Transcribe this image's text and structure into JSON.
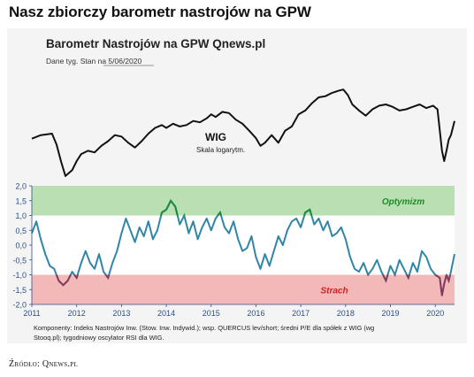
{
  "page": {
    "title": "Nasz zbiorczy barometr nastrojów na GPW",
    "source": "Źródło: Qnews.pl"
  },
  "chart_data": [
    {
      "type": "line",
      "title": "Barometr Nastrojów na GPW Qnews.pl",
      "subtitle": "Dane tyg. Stan na 5/06/2020",
      "series_label": "WIG",
      "series_sublabel": "Skala logarytm.",
      "series": [
        {
          "name": "WIG",
          "x": [
            2011.0,
            2011.2,
            2011.45,
            2011.55,
            2011.65,
            2011.75,
            2011.9,
            2012.0,
            2012.1,
            2012.25,
            2012.4,
            2012.55,
            2012.7,
            2012.85,
            2013.0,
            2013.15,
            2013.3,
            2013.45,
            2013.6,
            2013.75,
            2013.9,
            2014.0,
            2014.15,
            2014.3,
            2014.45,
            2014.6,
            2014.75,
            2014.9,
            2015.0,
            2015.1,
            2015.25,
            2015.4,
            2015.55,
            2015.7,
            2015.85,
            2016.0,
            2016.1,
            2016.2,
            2016.35,
            2016.5,
            2016.65,
            2016.8,
            2016.95,
            2017.1,
            2017.25,
            2017.4,
            2017.55,
            2017.7,
            2017.85,
            2017.95,
            2018.05,
            2018.15,
            2018.3,
            2018.45,
            2018.6,
            2018.75,
            2018.9,
            2019.05,
            2019.2,
            2019.35,
            2019.5,
            2019.65,
            2019.8,
            2019.95,
            2020.05,
            2020.15,
            2020.2,
            2020.25,
            2020.3,
            2020.35,
            2020.43
          ],
          "values": [
            47800,
            49000,
            49500,
            46000,
            41000,
            37000,
            38500,
            41000,
            43000,
            44000,
            43500,
            45500,
            47000,
            49000,
            48500,
            46500,
            45000,
            47000,
            49500,
            51500,
            52500,
            51500,
            53000,
            52000,
            52500,
            54000,
            53500,
            55000,
            56500,
            55500,
            57500,
            57000,
            54500,
            53000,
            50500,
            48000,
            45500,
            46500,
            49000,
            46500,
            50500,
            52000,
            56500,
            58000,
            61000,
            63500,
            64000,
            65500,
            66500,
            67000,
            64500,
            60500,
            58000,
            56000,
            58500,
            60000,
            60500,
            59500,
            58000,
            58500,
            59500,
            60500,
            59000,
            60000,
            58500,
            44000,
            41000,
            44000,
            47500,
            49000,
            54000
          ]
        }
      ],
      "yscale": "log",
      "ylim": [
        35000,
        70000
      ]
    },
    {
      "type": "line",
      "series": [
        {
          "name": "Indeks Nastrojów",
          "x": [
            2011.0,
            2011.1,
            2011.2,
            2011.3,
            2011.4,
            2011.5,
            2011.6,
            2011.7,
            2011.8,
            2011.9,
            2012.0,
            2012.1,
            2012.2,
            2012.3,
            2012.4,
            2012.5,
            2012.6,
            2012.7,
            2012.8,
            2012.9,
            2013.0,
            2013.1,
            2013.2,
            2013.3,
            2013.4,
            2013.5,
            2013.6,
            2013.7,
            2013.8,
            2013.9,
            2014.0,
            2014.1,
            2014.2,
            2014.3,
            2014.4,
            2014.5,
            2014.6,
            2014.7,
            2014.8,
            2014.9,
            2015.0,
            2015.1,
            2015.2,
            2015.3,
            2015.4,
            2015.5,
            2015.6,
            2015.7,
            2015.8,
            2015.9,
            2016.0,
            2016.1,
            2016.2,
            2016.3,
            2016.4,
            2016.5,
            2016.6,
            2016.7,
            2016.8,
            2016.9,
            2017.0,
            2017.1,
            2017.2,
            2017.3,
            2017.4,
            2017.5,
            2017.6,
            2017.7,
            2017.8,
            2017.9,
            2018.0,
            2018.1,
            2018.2,
            2018.3,
            2018.4,
            2018.5,
            2018.6,
            2018.7,
            2018.8,
            2018.9,
            2019.0,
            2019.1,
            2019.2,
            2019.3,
            2019.4,
            2019.5,
            2019.6,
            2019.7,
            2019.8,
            2019.9,
            2020.0,
            2020.1,
            2020.15,
            2020.2,
            2020.25,
            2020.3,
            2020.35,
            2020.43
          ],
          "values": [
            0.4,
            0.8,
            0.2,
            -0.3,
            -0.7,
            -0.8,
            -1.2,
            -1.35,
            -1.2,
            -0.9,
            -1.1,
            -0.6,
            -0.2,
            -0.6,
            -0.8,
            -0.3,
            -0.9,
            -1.1,
            -0.6,
            -0.2,
            0.4,
            0.9,
            0.5,
            0.1,
            0.6,
            0.3,
            0.8,
            0.2,
            0.5,
            1.1,
            1.2,
            1.5,
            1.3,
            0.7,
            1.0,
            0.4,
            0.8,
            0.2,
            0.6,
            0.9,
            0.5,
            0.9,
            1.1,
            0.6,
            0.4,
            0.8,
            0.2,
            -0.2,
            -0.1,
            0.3,
            -0.4,
            -0.8,
            -0.3,
            -0.7,
            -0.2,
            0.3,
            0.0,
            0.5,
            0.8,
            0.9,
            0.6,
            1.1,
            1.2,
            0.7,
            0.9,
            0.5,
            0.8,
            0.3,
            0.4,
            0.6,
            0.2,
            -0.4,
            -0.8,
            -0.9,
            -0.6,
            -1.0,
            -0.8,
            -0.5,
            -0.9,
            -1.2,
            -0.7,
            -1.0,
            -0.5,
            -0.8,
            -1.1,
            -0.6,
            -0.9,
            -0.2,
            -0.4,
            -0.8,
            -1.0,
            -1.1,
            -1.7,
            -1.3,
            -1.0,
            -1.2,
            -0.9,
            -0.3
          ]
        }
      ],
      "yticks": [
        "2,0",
        "1,5",
        "1,0",
        "0,5",
        "0,0",
        "-0,5",
        "-1,0",
        "-1,5",
        "-2,0"
      ],
      "ylim": [
        -2.0,
        2.0
      ],
      "xticks": [
        "2011",
        "2012",
        "2013",
        "2014",
        "2015",
        "2016",
        "2017",
        "2018",
        "2019",
        "2020"
      ],
      "xlim": [
        2011.0,
        2020.43
      ],
      "zones": [
        {
          "label": "Optymizm",
          "from": 1.0,
          "to": 2.0,
          "color": "#b9dfb3",
          "label_color": "#1f8a2a"
        },
        {
          "label": "Strach",
          "from": -2.0,
          "to": -1.0,
          "color": "#f3b8b8",
          "label_color": "#d42020"
        }
      ],
      "colors": {
        "line": "#2f86a6",
        "above_zone": "#1e8a3a",
        "below_zone": "#8a3a5a"
      }
    }
  ],
  "footnote": {
    "line1": "Komponenty: Indeks Nastrojów Inw. (Stow. Inw. Indywid.); wsp. QUERCUS lev/short; średni P/E dla spółek z WIG (wg",
    "line2": "Stooq.pl); tygodniowy oscylator RSI dla WIG."
  }
}
